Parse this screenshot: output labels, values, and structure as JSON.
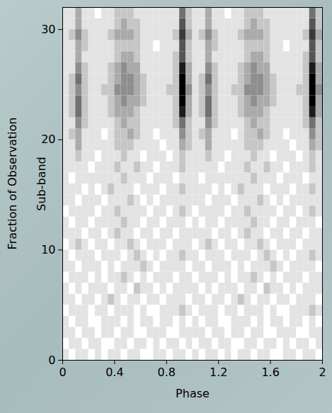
{
  "chart_data": {
    "type": "heatmap",
    "xlabel": "Phase",
    "ylabel": "Sub-band",
    "annotation": "Fraction of Observation",
    "xlim": [
      0,
      2
    ],
    "xticks": [
      0,
      0.4,
      0.8,
      1.2,
      1.6,
      2
    ],
    "ylim": [
      0,
      32
    ],
    "yticks": [
      0,
      10,
      20,
      30
    ],
    "color": "gray",
    "phase_bins": [
      0,
      0.05,
      0.1,
      0.15,
      0.2,
      0.25,
      0.3,
      0.35,
      0.4,
      0.45,
      0.5,
      0.55,
      0.6,
      0.65,
      0.7,
      0.75,
      0.8,
      0.85,
      0.9,
      0.95,
      1,
      1.05,
      1.1,
      1.15,
      1.2,
      1.25,
      1.3,
      1.35,
      1.4,
      1.45,
      1.5,
      1.55,
      1.6,
      1.65,
      1.7,
      1.75,
      1.8,
      1.85,
      1.9,
      1.95,
      2
    ],
    "subband_bins": [
      0,
      1,
      2,
      3,
      4,
      5,
      6,
      7,
      8,
      9,
      10,
      11,
      12,
      13,
      14,
      15,
      16,
      17,
      18,
      19,
      20,
      21,
      22,
      23,
      24,
      25,
      26,
      27,
      28,
      29,
      30,
      31,
      32
    ],
    "cells": [
      [
        1,
        0,
        1,
        1,
        0,
        1,
        0,
        1,
        1,
        0,
        1,
        1,
        0,
        0,
        1,
        1,
        0,
        1,
        1,
        0,
        1,
        0,
        1,
        1,
        0,
        1,
        0,
        1,
        1,
        0,
        1,
        1,
        0,
        0,
        1,
        1,
        0,
        1,
        1,
        0
      ],
      [
        0,
        1,
        1,
        0,
        1,
        1,
        0,
        0,
        1,
        1,
        0,
        1,
        1,
        0,
        1,
        0,
        1,
        1,
        0,
        1,
        0,
        1,
        1,
        0,
        1,
        1,
        0,
        0,
        1,
        1,
        0,
        1,
        1,
        0,
        1,
        0,
        1,
        1,
        0,
        1
      ],
      [
        1,
        1,
        0,
        1,
        1,
        0,
        1,
        1,
        0,
        1,
        1,
        0,
        0,
        1,
        1,
        1,
        0,
        0,
        1,
        1,
        1,
        1,
        0,
        1,
        1,
        0,
        1,
        1,
        0,
        1,
        1,
        0,
        0,
        1,
        1,
        1,
        0,
        0,
        1,
        1
      ],
      [
        1,
        0,
        1,
        1,
        0,
        0,
        1,
        1,
        1,
        0,
        1,
        0,
        1,
        1,
        0,
        1,
        1,
        0,
        1,
        0,
        1,
        0,
        1,
        1,
        0,
        0,
        1,
        1,
        1,
        0,
        1,
        0,
        1,
        1,
        0,
        1,
        1,
        0,
        1,
        0
      ],
      [
        0,
        1,
        1,
        1,
        0,
        1,
        1,
        0,
        1,
        1,
        1,
        0,
        1,
        0,
        0,
        1,
        1,
        1,
        2,
        1,
        0,
        1,
        1,
        1,
        0,
        1,
        1,
        0,
        1,
        1,
        1,
        0,
        1,
        0,
        0,
        1,
        1,
        1,
        2,
        1
      ],
      [
        1,
        1,
        0,
        1,
        1,
        0,
        1,
        2,
        1,
        0,
        1,
        1,
        0,
        1,
        1,
        0,
        1,
        1,
        1,
        0,
        1,
        1,
        0,
        1,
        1,
        0,
        1,
        2,
        1,
        0,
        1,
        1,
        0,
        1,
        1,
        0,
        1,
        1,
        1,
        0
      ],
      [
        1,
        0,
        1,
        0,
        1,
        1,
        1,
        0,
        1,
        1,
        0,
        2,
        1,
        1,
        0,
        1,
        0,
        1,
        1,
        1,
        1,
        0,
        1,
        0,
        1,
        1,
        1,
        0,
        1,
        1,
        0,
        2,
        1,
        1,
        0,
        1,
        0,
        1,
        1,
        1
      ],
      [
        0,
        1,
        1,
        1,
        0,
        1,
        0,
        1,
        1,
        2,
        1,
        0,
        1,
        0,
        1,
        1,
        1,
        0,
        1,
        1,
        0,
        1,
        1,
        1,
        0,
        1,
        0,
        1,
        1,
        2,
        1,
        0,
        1,
        0,
        1,
        1,
        1,
        0,
        1,
        1
      ],
      [
        1,
        1,
        0,
        1,
        1,
        1,
        0,
        1,
        0,
        1,
        1,
        1,
        2,
        1,
        0,
        1,
        1,
        1,
        1,
        0,
        1,
        1,
        0,
        1,
        1,
        1,
        0,
        1,
        0,
        1,
        1,
        1,
        2,
        1,
        0,
        1,
        1,
        1,
        1,
        0
      ],
      [
        1,
        0,
        1,
        1,
        1,
        0,
        1,
        1,
        1,
        0,
        1,
        2,
        1,
        0,
        1,
        0,
        1,
        1,
        2,
        1,
        1,
        0,
        1,
        1,
        1,
        0,
        1,
        1,
        1,
        0,
        1,
        2,
        1,
        0,
        1,
        0,
        1,
        1,
        2,
        1
      ],
      [
        0,
        1,
        2,
        1,
        0,
        1,
        1,
        0,
        1,
        1,
        2,
        1,
        0,
        1,
        1,
        1,
        0,
        1,
        1,
        1,
        0,
        1,
        2,
        1,
        0,
        1,
        1,
        0,
        1,
        1,
        2,
        1,
        0,
        1,
        1,
        1,
        0,
        1,
        1,
        1
      ],
      [
        1,
        1,
        1,
        0,
        1,
        1,
        0,
        1,
        2,
        1,
        1,
        0,
        1,
        1,
        0,
        1,
        1,
        0,
        1,
        1,
        1,
        1,
        1,
        0,
        1,
        1,
        0,
        1,
        2,
        1,
        1,
        0,
        1,
        1,
        0,
        1,
        1,
        0,
        1,
        1
      ],
      [
        1,
        0,
        1,
        1,
        0,
        1,
        1,
        1,
        1,
        2,
        1,
        1,
        0,
        1,
        1,
        0,
        1,
        1,
        1,
        0,
        1,
        0,
        1,
        1,
        0,
        1,
        1,
        1,
        1,
        2,
        1,
        1,
        0,
        1,
        1,
        0,
        1,
        1,
        1,
        0
      ],
      [
        0,
        1,
        1,
        1,
        1,
        0,
        1,
        1,
        2,
        1,
        1,
        1,
        1,
        0,
        1,
        1,
        0,
        1,
        2,
        1,
        0,
        1,
        1,
        1,
        1,
        0,
        1,
        1,
        2,
        1,
        1,
        1,
        1,
        0,
        1,
        1,
        0,
        1,
        2,
        1
      ],
      [
        1,
        1,
        0,
        1,
        1,
        1,
        0,
        1,
        1,
        1,
        2,
        1,
        0,
        1,
        0,
        1,
        1,
        1,
        1,
        1,
        1,
        1,
        0,
        1,
        1,
        1,
        0,
        1,
        1,
        1,
        2,
        1,
        0,
        1,
        0,
        1,
        1,
        1,
        1,
        1
      ],
      [
        1,
        1,
        1,
        0,
        1,
        0,
        1,
        2,
        1,
        1,
        1,
        0,
        1,
        1,
        1,
        0,
        1,
        1,
        2,
        1,
        1,
        1,
        1,
        0,
        1,
        0,
        1,
        2,
        1,
        1,
        1,
        0,
        1,
        1,
        1,
        0,
        1,
        1,
        2,
        1
      ],
      [
        1,
        0,
        1,
        1,
        1,
        1,
        1,
        1,
        1,
        2,
        1,
        1,
        1,
        0,
        1,
        1,
        1,
        0,
        1,
        1,
        1,
        0,
        1,
        1,
        1,
        1,
        1,
        1,
        1,
        2,
        1,
        1,
        1,
        0,
        1,
        1,
        1,
        0,
        1,
        1
      ],
      [
        1,
        1,
        1,
        1,
        0,
        1,
        1,
        1,
        2,
        1,
        1,
        2,
        1,
        1,
        0,
        1,
        1,
        1,
        2,
        1,
        1,
        1,
        1,
        1,
        0,
        1,
        1,
        1,
        2,
        1,
        1,
        2,
        1,
        1,
        0,
        1,
        1,
        1,
        2,
        1
      ],
      [
        1,
        1,
        2,
        1,
        1,
        0,
        1,
        1,
        1,
        2,
        1,
        1,
        0,
        1,
        1,
        1,
        0,
        1,
        2,
        1,
        1,
        1,
        2,
        1,
        1,
        0,
        1,
        1,
        1,
        2,
        1,
        1,
        0,
        1,
        1,
        1,
        0,
        1,
        2,
        1
      ],
      [
        1,
        1,
        3,
        1,
        1,
        1,
        1,
        1,
        2,
        2,
        2,
        1,
        1,
        1,
        1,
        0,
        1,
        1,
        3,
        2,
        1,
        1,
        3,
        1,
        1,
        1,
        1,
        1,
        2,
        2,
        2,
        1,
        1,
        1,
        1,
        0,
        1,
        1,
        3,
        2
      ],
      [
        1,
        2,
        3,
        1,
        1,
        1,
        0,
        1,
        2,
        2,
        3,
        2,
        1,
        1,
        0,
        1,
        1,
        1,
        4,
        2,
        1,
        2,
        3,
        1,
        1,
        1,
        0,
        1,
        2,
        2,
        3,
        2,
        1,
        1,
        0,
        1,
        1,
        1,
        4,
        2
      ],
      [
        1,
        1,
        4,
        2,
        1,
        1,
        1,
        1,
        2,
        3,
        2,
        2,
        1,
        1,
        1,
        1,
        1,
        2,
        5,
        2,
        1,
        1,
        4,
        2,
        1,
        1,
        1,
        1,
        2,
        3,
        2,
        2,
        1,
        1,
        1,
        1,
        1,
        2,
        5,
        2
      ],
      [
        1,
        2,
        5,
        2,
        1,
        1,
        1,
        2,
        3,
        3,
        3,
        2,
        1,
        1,
        1,
        1,
        1,
        2,
        8,
        3,
        1,
        2,
        5,
        2,
        1,
        1,
        1,
        2,
        3,
        3,
        3,
        2,
        1,
        1,
        1,
        1,
        1,
        2,
        8,
        3
      ],
      [
        1,
        2,
        5,
        2,
        1,
        1,
        1,
        2,
        3,
        4,
        3,
        3,
        2,
        1,
        1,
        1,
        1,
        2,
        9,
        3,
        1,
        2,
        5,
        2,
        1,
        1,
        1,
        2,
        3,
        4,
        3,
        3,
        2,
        1,
        1,
        1,
        1,
        2,
        9,
        3
      ],
      [
        1,
        2,
        4,
        2,
        1,
        1,
        2,
        2,
        4,
        4,
        4,
        3,
        2,
        1,
        1,
        1,
        2,
        2,
        9,
        4,
        1,
        2,
        4,
        2,
        1,
        1,
        2,
        2,
        4,
        4,
        4,
        3,
        2,
        1,
        1,
        1,
        2,
        2,
        9,
        4
      ],
      [
        1,
        2,
        5,
        2,
        1,
        1,
        1,
        2,
        3,
        4,
        4,
        3,
        2,
        1,
        1,
        1,
        1,
        2,
        9,
        3,
        1,
        2,
        5,
        2,
        1,
        1,
        1,
        2,
        3,
        4,
        4,
        3,
        2,
        1,
        1,
        1,
        1,
        2,
        9,
        3
      ],
      [
        1,
        1,
        4,
        2,
        1,
        1,
        1,
        2,
        3,
        4,
        3,
        3,
        1,
        1,
        1,
        1,
        1,
        2,
        8,
        3,
        1,
        1,
        4,
        2,
        1,
        1,
        1,
        2,
        3,
        4,
        3,
        3,
        1,
        1,
        1,
        1,
        1,
        2,
        8,
        3
      ],
      [
        1,
        1,
        3,
        1,
        1,
        1,
        1,
        1,
        2,
        3,
        3,
        2,
        1,
        1,
        1,
        1,
        1,
        2,
        6,
        2,
        1,
        1,
        3,
        1,
        1,
        1,
        1,
        1,
        2,
        3,
        3,
        2,
        1,
        1,
        1,
        1,
        1,
        2,
        6,
        2
      ],
      [
        1,
        1,
        3,
        2,
        1,
        1,
        1,
        1,
        2,
        2,
        2,
        2,
        1,
        1,
        0,
        1,
        1,
        1,
        6,
        2,
        1,
        1,
        3,
        2,
        1,
        1,
        1,
        1,
        2,
        2,
        2,
        2,
        1,
        1,
        0,
        1,
        1,
        1,
        6,
        2
      ],
      [
        1,
        2,
        4,
        2,
        1,
        1,
        1,
        2,
        3,
        3,
        3,
        2,
        1,
        1,
        1,
        1,
        1,
        2,
        7,
        3,
        1,
        2,
        4,
        2,
        1,
        1,
        1,
        2,
        3,
        3,
        3,
        2,
        1,
        1,
        1,
        1,
        1,
        2,
        7,
        3
      ],
      [
        1,
        1,
        3,
        1,
        1,
        1,
        1,
        1,
        2,
        3,
        2,
        2,
        1,
        1,
        1,
        1,
        1,
        1,
        6,
        2,
        1,
        1,
        3,
        1,
        1,
        1,
        1,
        1,
        2,
        3,
        2,
        2,
        1,
        1,
        1,
        1,
        1,
        1,
        6,
        2
      ],
      [
        1,
        1,
        3,
        1,
        1,
        0,
        1,
        1,
        2,
        2,
        2,
        1,
        1,
        1,
        1,
        1,
        1,
        1,
        5,
        2,
        1,
        1,
        3,
        1,
        1,
        0,
        1,
        1,
        2,
        2,
        2,
        1,
        1,
        1,
        1,
        1,
        1,
        1,
        5,
        2
      ]
    ]
  }
}
